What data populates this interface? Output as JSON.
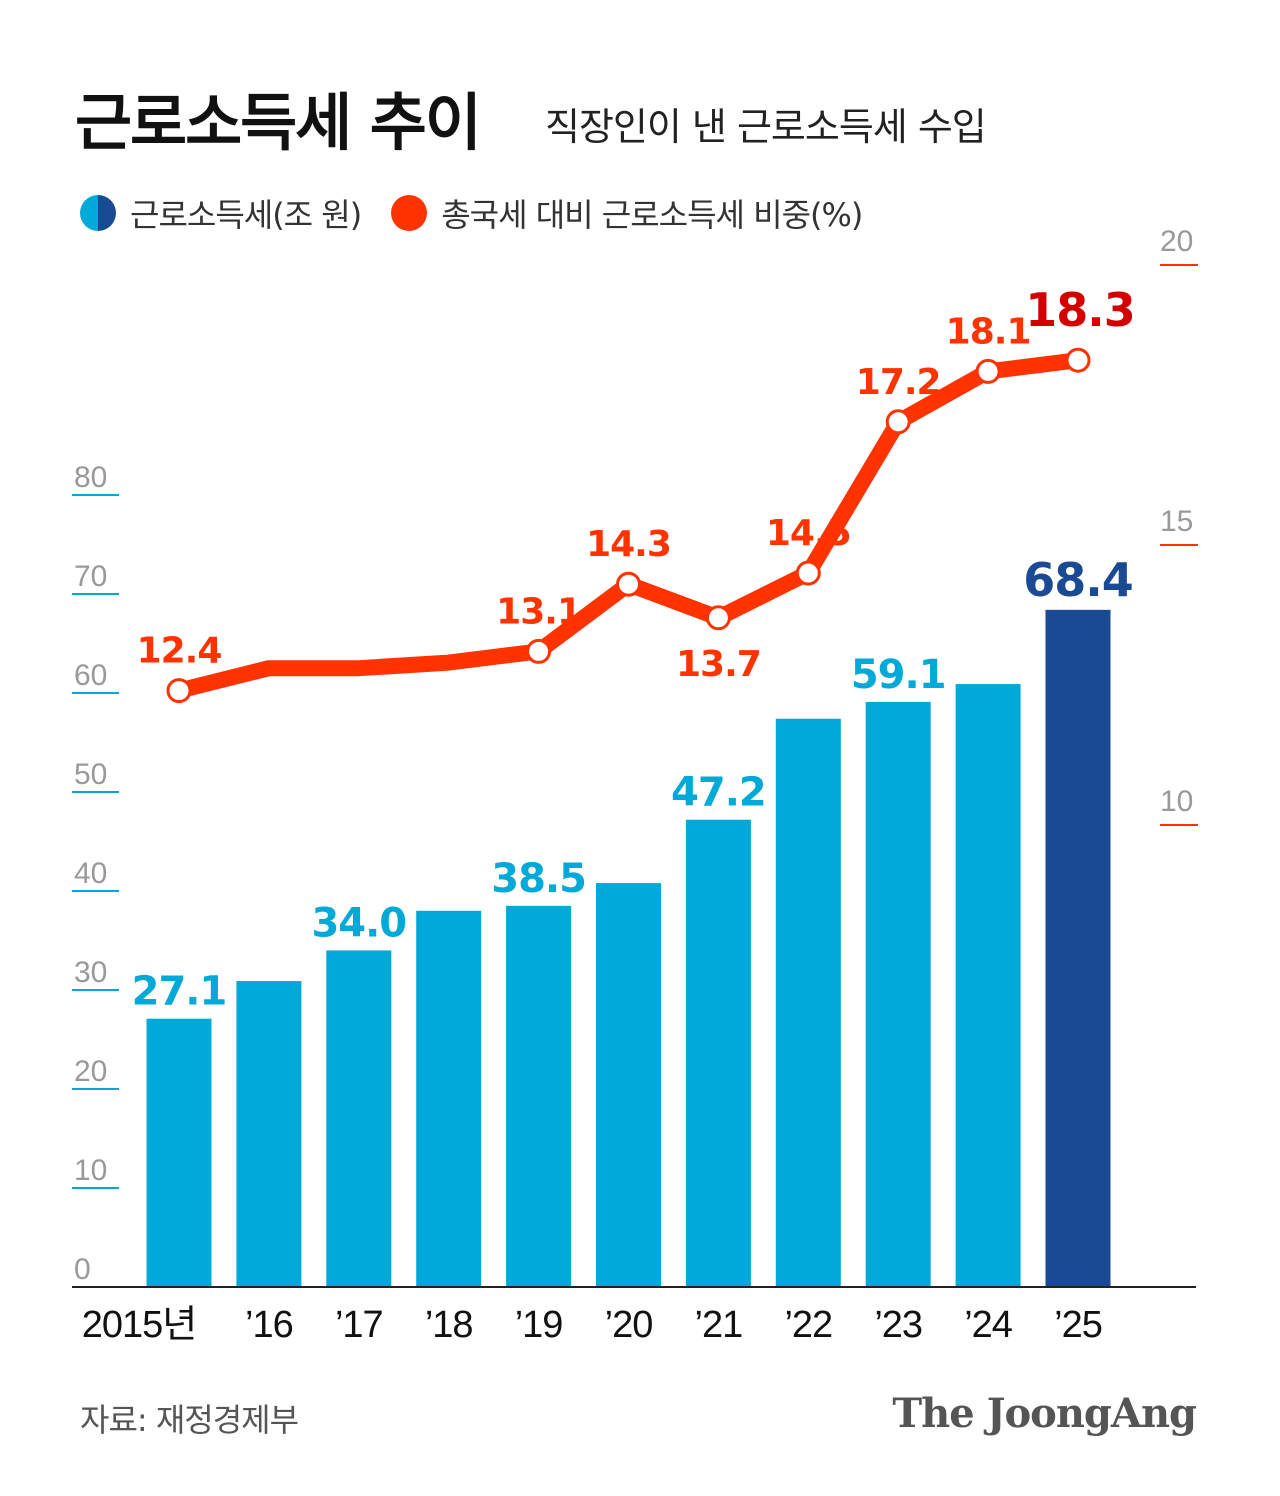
{
  "header": {
    "title": "근로소득세 추이",
    "subtitle": "직장인이 낸 근로소득세 수입"
  },
  "legend": [
    {
      "label": "근로소득세(조 원)",
      "color": "#00a9d8",
      "color2": "#1a4a93"
    },
    {
      "label": "총국세 대비 근로소득세 비중(%)",
      "color": "#ff3300"
    }
  ],
  "footer": {
    "source": "자료: 재정경제부",
    "logo": "The JoongAng"
  },
  "chart_data": {
    "type": "bar+line",
    "categories": [
      "2015년",
      "’16",
      "’17",
      "’18",
      "’19",
      "’20",
      "’21",
      "’22",
      "’23",
      "’24",
      "’25"
    ],
    "series": [
      {
        "name": "근로소득세(조 원)",
        "type": "bar",
        "axis": "left",
        "values": [
          27.1,
          30.9,
          34.0,
          38.0,
          38.5,
          40.8,
          47.2,
          57.4,
          59.1,
          60.9,
          68.4
        ],
        "labels": [
          "27.1",
          "",
          "34.0",
          "",
          "38.5",
          "",
          "47.2",
          "",
          "59.1",
          "",
          "68.4"
        ],
        "color": "#00a9d8",
        "highlight_color": "#1a4a93"
      },
      {
        "name": "총국세 대비 근로소득세 비중(%)",
        "type": "line",
        "axis": "right",
        "values": [
          12.4,
          12.8,
          12.8,
          12.9,
          13.1,
          14.3,
          13.7,
          14.5,
          17.2,
          18.1,
          18.3
        ],
        "labels": [
          "12.4",
          "",
          "",
          "",
          "13.1",
          "14.3",
          "13.7",
          "14.5",
          "17.2",
          "18.1",
          "18.3"
        ],
        "color": "#ff3300",
        "highlight_color": "#d40000"
      }
    ],
    "left_axis": {
      "ylim": [
        0,
        80
      ],
      "ticks": [
        "0",
        "10",
        "20",
        "30",
        "40",
        "50",
        "60",
        "70",
        "80"
      ],
      "color": "#00a9d8"
    },
    "right_axis": {
      "ylim": [
        10,
        20
      ],
      "ticks": [
        "10",
        "15",
        "20"
      ],
      "color": "#ff3300"
    }
  }
}
